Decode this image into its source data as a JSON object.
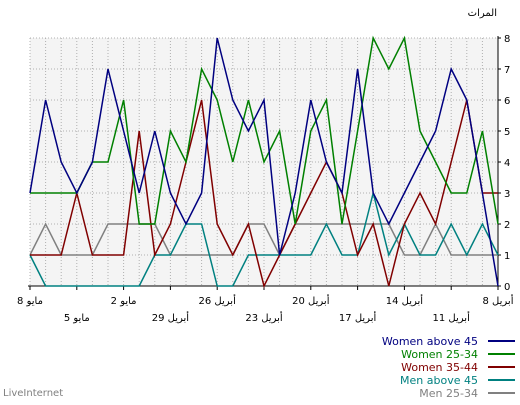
{
  "chart_data": {
    "type": "line",
    "ylabel": "المرات",
    "ylim": [
      0,
      8
    ],
    "yticks": [
      "0",
      "1",
      "2",
      "3",
      "4",
      "5",
      "6",
      "7",
      "8"
    ],
    "x_dates": [
      "8 أبريل",
      "9 أبريل",
      "10 أبريل",
      "11 أبريل",
      "12 أبريل",
      "13 أبريل",
      "14 أبريل",
      "15 أبريل",
      "16 أبريل",
      "17 أبريل",
      "18 أبريل",
      "19 أبريل",
      "20 أبريل",
      "21 أبريل",
      "22 أبريل",
      "23 أبريل",
      "24 أبريل",
      "25 أبريل",
      "26 أبريل",
      "27 أبريل",
      "28 أبريل",
      "29 أبريل",
      "30 أبريل",
      "1 مايو",
      "2 مايو",
      "3 مايو",
      "4 مايو",
      "5 مايو",
      "6 مايو",
      "7 مايو",
      "8 مايو"
    ],
    "tick_labels": [
      {
        "text": "8 أبريل",
        "i": 0,
        "row": 0
      },
      {
        "text": "11 أبريل",
        "i": 3,
        "row": 1
      },
      {
        "text": "14 أبريل",
        "i": 6,
        "row": 0
      },
      {
        "text": "17 أبريل",
        "i": 9,
        "row": 1
      },
      {
        "text": "20 أبريل",
        "i": 12,
        "row": 0
      },
      {
        "text": "23 أبريل",
        "i": 15,
        "row": 1
      },
      {
        "text": "26 أبريل",
        "i": 18,
        "row": 0
      },
      {
        "text": "29 أبريل",
        "i": 21,
        "row": 1
      },
      {
        "text": "2 مايو",
        "i": 24,
        "row": 0
      },
      {
        "text": "5 مايو",
        "i": 27,
        "row": 1
      },
      {
        "text": "8 مايو",
        "i": 30,
        "row": 0
      }
    ],
    "series": [
      {
        "name": "Women above 45",
        "color": "#000080",
        "values": [
          0,
          3,
          6,
          7,
          5,
          4,
          3,
          2,
          3,
          7,
          3,
          4,
          6,
          3,
          1,
          6,
          5,
          6,
          8,
          3,
          2,
          3,
          5,
          3,
          5,
          7,
          4,
          3,
          4,
          6,
          3
        ]
      },
      {
        "name": "Women 25-34",
        "color": "#008000",
        "values": [
          2,
          5,
          3,
          3,
          4,
          5,
          8,
          7,
          8,
          5,
          2,
          6,
          5,
          2,
          5,
          4,
          6,
          4,
          6,
          7,
          4,
          5,
          2,
          2,
          6,
          4,
          4,
          3,
          3,
          3,
          3
        ]
      },
      {
        "name": "Women 35-44",
        "color": "#800000",
        "values": [
          3,
          3,
          6,
          4,
          2,
          3,
          2,
          0,
          2,
          1,
          3,
          4,
          3,
          2,
          1,
          0,
          2,
          1,
          2,
          6,
          4,
          2,
          1,
          5,
          1,
          1,
          1,
          3,
          1,
          1,
          1
        ]
      },
      {
        "name": "Men above 45",
        "color": "#008080",
        "values": [
          1,
          2,
          1,
          2,
          1,
          1,
          2,
          1,
          3,
          1,
          1,
          2,
          1,
          1,
          1,
          1,
          1,
          0,
          0,
          2,
          2,
          1,
          1,
          0,
          0,
          0,
          0,
          0,
          0,
          0,
          1
        ]
      },
      {
        "name": "Men 25-34",
        "color": "#808080",
        "values": [
          1,
          1,
          1,
          1,
          2,
          1,
          1,
          2,
          2,
          2,
          2,
          2,
          2,
          2,
          1,
          2,
          2,
          1,
          1,
          1,
          1,
          1,
          2,
          2,
          2,
          2,
          1,
          1,
          1,
          2,
          1
        ]
      }
    ]
  },
  "footer": "LiveInternet"
}
